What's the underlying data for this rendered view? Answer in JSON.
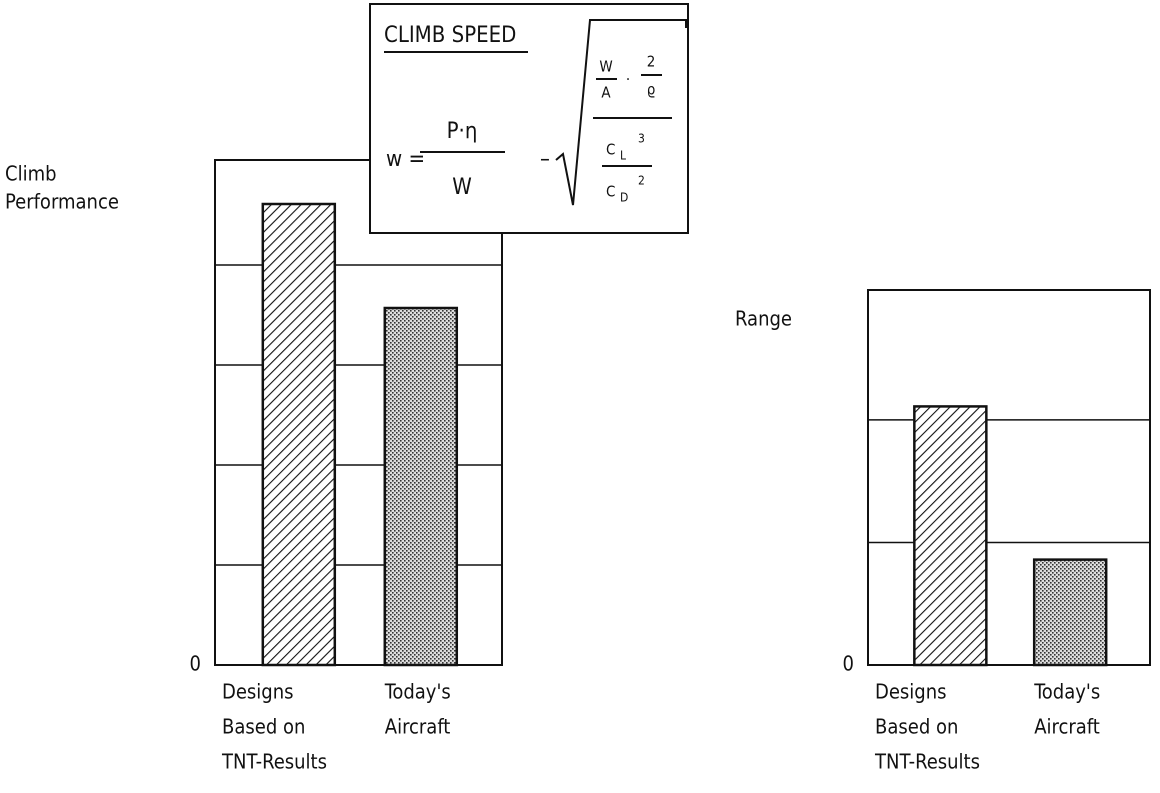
{
  "chart_data": [
    {
      "type": "bar",
      "ylabel": [
        "Climb",
        "Performance"
      ],
      "categories": [
        [
          "Designs",
          "Based on",
          "TNT-Results"
        ],
        [
          "Today's",
          "Aircraft"
        ]
      ],
      "values": [
        4.61,
        3.57
      ],
      "patterns": [
        "hatch",
        "dots"
      ],
      "color": "#111111",
      "ylim": [
        0,
        5.05
      ],
      "yticks": [
        0
      ],
      "gridlines": [
        1,
        2,
        3,
        4
      ]
    },
    {
      "type": "bar",
      "ylabel": [
        "Range"
      ],
      "categories": [
        [
          "Designs",
          "Based on",
          "TNT-Results"
        ],
        [
          "Today's",
          "Aircraft"
        ]
      ],
      "values": [
        2.11,
        0.86
      ],
      "patterns": [
        "hatch",
        "dots"
      ],
      "color": "#111111",
      "ylim": [
        0,
        3.06
      ],
      "yticks": [
        0
      ],
      "gridlines": [
        1,
        2
      ]
    }
  ],
  "formula": {
    "title": "CLIMB SPEED",
    "lhs": "w =",
    "p_eta": "P·η",
    "w_den": "W",
    "minus": "–",
    "w_num": "W",
    "a_den": "A",
    "dot": "·",
    "two": "2",
    "rho": "ϱ",
    "cl_c": "C",
    "cl_sub": "L",
    "cl_exp": "3",
    "cd_c": "C",
    "cd_sub": "D",
    "cd_exp": "2"
  }
}
